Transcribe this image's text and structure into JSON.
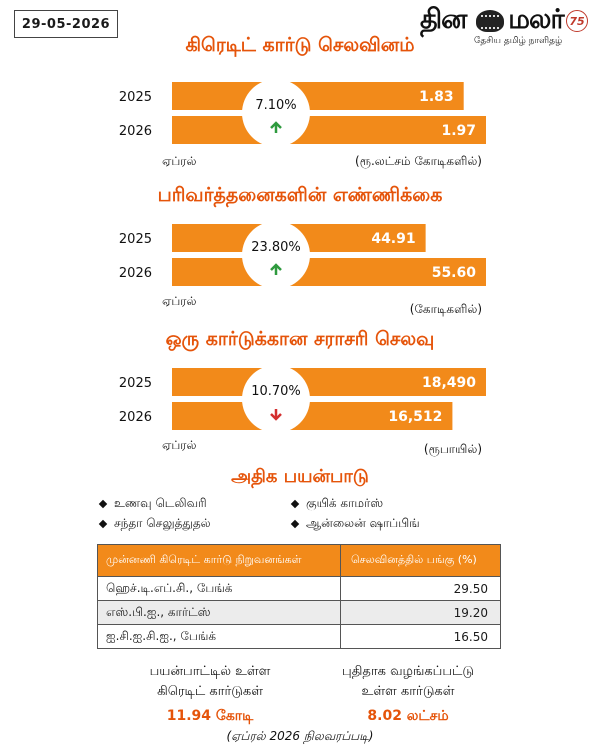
{
  "header": {
    "date": "29-05-2026",
    "logo_text": "தினமலர்",
    "logo_badge": "75",
    "logo_tagline": "தேசிய தமிழ் நாளிதழ்"
  },
  "chart_data": [
    {
      "type": "bar",
      "title": "கிரெடிட் கார்டு செலவினம்",
      "categories": [
        "2025",
        "2026"
      ],
      "values": [
        1.83,
        1.97
      ],
      "value_labels": [
        "1.83",
        "1.97"
      ],
      "change_label": "7.10%",
      "change_direction": "up",
      "xlabel": "ஏப்ரல்",
      "unit_label": "(ரூ.லட்சம் கோடிகளில்)"
    },
    {
      "type": "bar",
      "title": "பரிவர்த்தனைகளின் எண்ணிக்கை",
      "categories": [
        "2025",
        "2026"
      ],
      "values": [
        44.91,
        55.6
      ],
      "value_labels": [
        "44.91",
        "55.60"
      ],
      "change_label": "23.80%",
      "change_direction": "up",
      "xlabel": "ஏப்ரல்",
      "unit_label": "(கோடிகளில்)"
    },
    {
      "type": "bar",
      "title": "ஒரு கார்டுக்கான சராசரி செலவு",
      "categories": [
        "2025",
        "2026"
      ],
      "values": [
        18490,
        16512
      ],
      "value_labels": [
        "18,490",
        "16,512"
      ],
      "change_label": "10.70%",
      "change_direction": "down",
      "xlabel": "ஏப்ரல்",
      "unit_label": "(ரூபாயில்)"
    }
  ],
  "usage": {
    "title": "அதிக பயன்பாடு",
    "items": [
      "உணவு டெலிவரி",
      "குயிக் காமர்ஸ்",
      "சந்தா செலுத்துதல்",
      "ஆன்லைன் ஷாப்பிங்"
    ]
  },
  "table": {
    "headers": [
      "முன்னணி கிரெடிட் கார்டு நிறுவனங்கள்",
      "செலவினத்தில் பங்கு (%)"
    ],
    "rows": [
      [
        "ஹெச்.டி.எப்.சி., பேங்க்",
        "29.50"
      ],
      [
        "எஸ்.பி.ஐ., கார்ட்ஸ்",
        "19.20"
      ],
      [
        "ஐ.சி.ஐ.சி.ஐ., பேங்க்",
        "16.50"
      ]
    ]
  },
  "stats": [
    {
      "line1": "பயன்பாட்டில் உள்ள",
      "line2": "கிரெடிட் கார்டுகள்",
      "value": "11.94 கோடி"
    },
    {
      "line1": "புதிதாக வழங்கப்பட்டு",
      "line2": "உள்ள கார்டுகள்",
      "value": "8.02 லட்சம்"
    }
  ],
  "footnote": "(ஏப்ரல் 2026 நிலவரப்படி)",
  "colors": {
    "bar": "#f28a1a",
    "title": "#e5540a",
    "up_arrow": "#2e9a3e",
    "down_arrow": "#d32f2f",
    "table_header": "#f28a1a"
  }
}
